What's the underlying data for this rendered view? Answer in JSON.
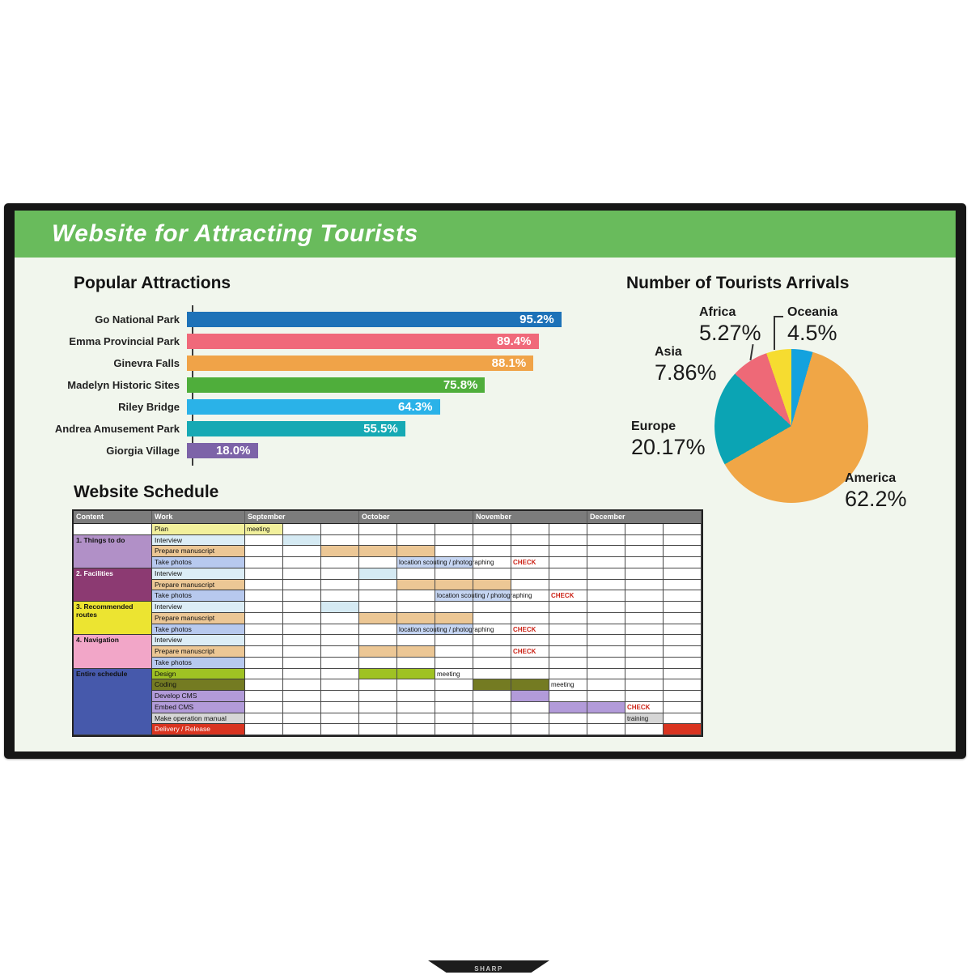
{
  "device": {
    "logo": "SHARP"
  },
  "header": {
    "title": "Website for Attracting Tourists",
    "bg": "#69bb5c"
  },
  "chart_data": [
    {
      "type": "bar",
      "orientation": "horizontal",
      "title": "Popular Attractions",
      "categories": [
        "Go National Park",
        "Emma Provincial Park",
        "Ginevra Falls",
        "Madelyn Historic Sites",
        "Riley Bridge",
        "Andrea Amusement Park",
        "Giorgia Village"
      ],
      "values": [
        95.2,
        89.4,
        88.1,
        75.8,
        64.3,
        55.5,
        18.0
      ],
      "value_labels": [
        "95.2%",
        "89.4%",
        "88.1%",
        "75.8%",
        "64.3%",
        "55.5%",
        "18.0%"
      ],
      "colors": [
        "#1d72b8",
        "#f0697a",
        "#f0a348",
        "#4fae3b",
        "#2ab2e8",
        "#16a9b4",
        "#7d63a8"
      ],
      "xlabel": "",
      "ylabel": "",
      "xlim": [
        0,
        100
      ],
      "grid": false,
      "legend": "none"
    },
    {
      "type": "pie",
      "title": "Number of Tourists Arrivals",
      "labels": [
        "Oceania",
        "America",
        "Europe",
        "Asia",
        "Africa"
      ],
      "values": [
        4.5,
        62.2,
        20.17,
        7.86,
        5.27
      ],
      "value_labels": [
        "4.5%",
        "62.2%",
        "20.17%",
        "7.86%",
        "5.27%"
      ],
      "colors": [
        "#14a2de",
        "#f0a646",
        "#0ba4b4",
        "#ee6977",
        "#f6dc30"
      ],
      "start_angle_deg": 0,
      "direction": "clockwise",
      "legend": "labels-around-pie"
    }
  ],
  "schedule": {
    "title": "Website Schedule",
    "columns": {
      "content": "Content",
      "work": "Work",
      "months": [
        "September",
        "October",
        "November",
        "December"
      ],
      "cols_per_month": 3
    },
    "check_color": "#cc2418",
    "rows": [
      {
        "group": {
          "label": "",
          "bg": "#ffffff",
          "color": "#111111",
          "rows": 1
        },
        "work": "Plan",
        "work_bg": "#f2f09c",
        "work_color": "#111111",
        "bars": [
          {
            "col": 1,
            "span": 1,
            "bg": "#f2f09c",
            "text": "meeting"
          }
        ]
      },
      {
        "group": {
          "label": "1. Things to do",
          "bg": "#b190c7",
          "color": "#111111",
          "rows": 3
        },
        "work": "Interview",
        "work_bg": "#dcedf6",
        "work_color": "#111111",
        "bars": [
          {
            "col": 2,
            "span": 1,
            "bg": "#d5eaf3"
          }
        ]
      },
      {
        "work": "Prepare manuscript",
        "work_bg": "#ecc795",
        "work_color": "#111111",
        "bars": [
          {
            "col": 3,
            "span": 3,
            "bg": "#ecc795"
          }
        ]
      },
      {
        "work": "Take photos",
        "work_bg": "#b7c9ee",
        "work_color": "#111111",
        "bars": [
          {
            "col": 5,
            "span": 2,
            "bg": "#c5d5f2",
            "text": "location scouting / photographing"
          },
          {
            "col": 8,
            "span": 1,
            "text": "CHECK",
            "style": "check"
          }
        ]
      },
      {
        "group": {
          "label": "2. Facilities",
          "bg": "#8c3a72",
          "color": "#ffffff",
          "rows": 3
        },
        "work": "Interview",
        "work_bg": "#dcedf6",
        "work_color": "#111111",
        "bars": [
          {
            "col": 4,
            "span": 1,
            "bg": "#d5eaf3"
          }
        ]
      },
      {
        "work": "Prepare manuscript",
        "work_bg": "#ecc795",
        "work_color": "#111111",
        "bars": [
          {
            "col": 5,
            "span": 3,
            "bg": "#ecc795"
          }
        ]
      },
      {
        "work": "Take photos",
        "work_bg": "#b7c9ee",
        "work_color": "#111111",
        "bars": [
          {
            "col": 6,
            "span": 2,
            "bg": "#c5d5f2",
            "text": "location scouting / photographing"
          },
          {
            "col": 9,
            "span": 1,
            "text": "CHECK",
            "style": "check"
          }
        ]
      },
      {
        "group": {
          "label": "3. Recommended routes",
          "bg": "#ece431",
          "color": "#111111",
          "rows": 3
        },
        "work": "Interview",
        "work_bg": "#dcedf6",
        "work_color": "#111111",
        "bars": [
          {
            "col": 3,
            "span": 1,
            "bg": "#d5eaf3"
          }
        ]
      },
      {
        "work": "Prepare manuscript",
        "work_bg": "#ecc795",
        "work_color": "#111111",
        "bars": [
          {
            "col": 4,
            "span": 3,
            "bg": "#ecc795"
          }
        ]
      },
      {
        "work": "Take photos",
        "work_bg": "#b7c9ee",
        "work_color": "#111111",
        "bars": [
          {
            "col": 5,
            "span": 2,
            "bg": "#c5d5f2",
            "text": "location scouting / photographing"
          },
          {
            "col": 8,
            "span": 1,
            "text": "CHECK",
            "style": "check"
          }
        ]
      },
      {
        "group": {
          "label": "4. Navigation",
          "bg": "#f2a6c8",
          "color": "#111111",
          "rows": 3
        },
        "work": "Interview",
        "work_bg": "#dcedf6",
        "work_color": "#111111",
        "bars": []
      },
      {
        "work": "Prepare manuscript",
        "work_bg": "#ecc795",
        "work_color": "#111111",
        "bars": [
          {
            "col": 4,
            "span": 2,
            "bg": "#ecc795"
          },
          {
            "col": 8,
            "span": 1,
            "text": "CHECK",
            "style": "check"
          }
        ]
      },
      {
        "work": "Take photos",
        "work_bg": "#b7c9ee",
        "work_color": "#111111",
        "bars": []
      },
      {
        "group": {
          "label": "Entire schedule",
          "bg": "#4659ab",
          "color": "#111111",
          "rows": 6
        },
        "work": "Design",
        "work_bg": "#9fc223",
        "work_color": "#111111",
        "bars": [
          {
            "col": 4,
            "span": 2,
            "bg": "#9fc223"
          },
          {
            "col": 6,
            "span": 1,
            "text": "meeting"
          }
        ]
      },
      {
        "work": "Coding",
        "work_bg": "#747b22",
        "work_color": "#111111",
        "bars": [
          {
            "col": 7,
            "span": 2,
            "bg": "#747b22"
          },
          {
            "col": 9,
            "span": 1,
            "text": "meeting"
          }
        ]
      },
      {
        "work": "Develop CMS",
        "work_bg": "#b29bd9",
        "work_color": "#111111",
        "bars": [
          {
            "col": 8,
            "span": 1,
            "bg": "#b29bd9"
          }
        ]
      },
      {
        "work": "Embed CMS",
        "work_bg": "#b29bd9",
        "work_color": "#111111",
        "bars": [
          {
            "col": 9,
            "span": 2,
            "bg": "#b29bd9"
          },
          {
            "col": 11,
            "span": 1,
            "text": "CHECK",
            "style": "check"
          }
        ]
      },
      {
        "work": "Make operation manual",
        "work_bg": "#d6d6d6",
        "work_color": "#111111",
        "bars": [
          {
            "col": 11,
            "span": 1,
            "bg": "#d6d6d6",
            "text": "training"
          }
        ]
      },
      {
        "work": "Delivery / Release",
        "work_bg": "#d93420",
        "work_color": "#ffffff",
        "bars": [
          {
            "col": 12,
            "span": 1,
            "bg": "#d93420"
          }
        ]
      }
    ]
  }
}
